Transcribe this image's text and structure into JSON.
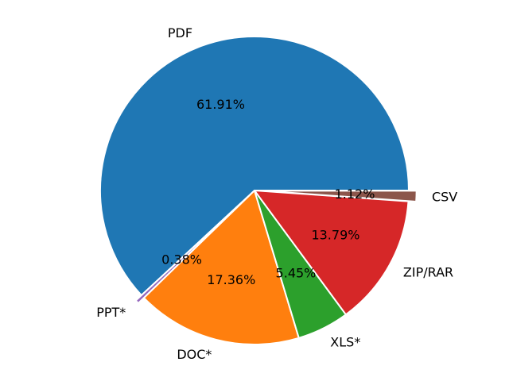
{
  "chart_data": {
    "type": "pie",
    "title": "",
    "start_angle_deg": 0,
    "direction": "counterclockwise",
    "slices": [
      {
        "label": "PDF",
        "value": 61.91,
        "pct_label": "61.91%",
        "color": "#1f77b4",
        "exploded": false
      },
      {
        "label": "PPT*",
        "value": 0.38,
        "pct_label": "0.38%",
        "color": "#9467bd",
        "exploded": true
      },
      {
        "label": "DOC*",
        "value": 17.36,
        "pct_label": "17.36%",
        "color": "#ff7f0e",
        "exploded": false
      },
      {
        "label": "XLS*",
        "value": 5.45,
        "pct_label": "5.45%",
        "color": "#2ca02c",
        "exploded": false
      },
      {
        "label": "ZIP/RAR",
        "value": 13.79,
        "pct_label": "13.79%",
        "color": "#d62728",
        "exploded": false
      },
      {
        "label": "CSV",
        "value": 1.12,
        "pct_label": "1.12%",
        "color": "#8c564b",
        "exploded": true
      }
    ]
  }
}
